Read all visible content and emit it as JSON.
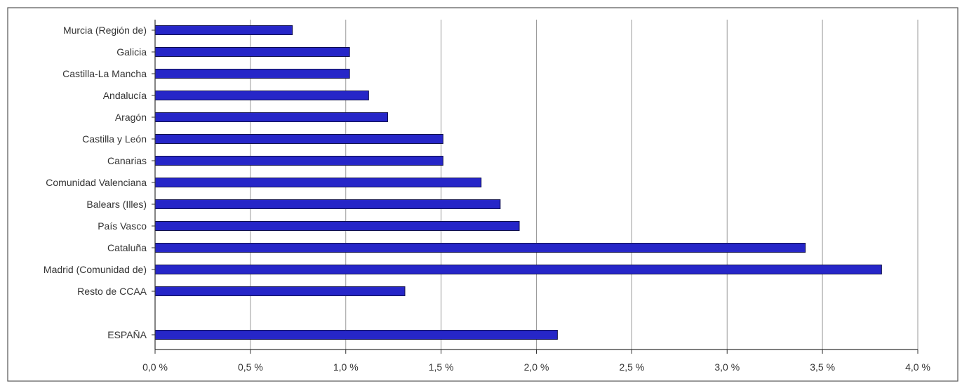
{
  "chart_data": {
    "type": "bar",
    "orientation": "horizontal",
    "categories": [
      "Murcia (Región de)",
      "Galicia",
      "Castilla-La Mancha",
      "Andalucía",
      "Aragón",
      "Castilla y León",
      "Canarias",
      "Comunidad Valenciana",
      "Balears (Illes)",
      "País Vasco",
      "Cataluña",
      "Madrid (Comunidad de)",
      "Resto de CCAA",
      "",
      "ESPAÑA"
    ],
    "values": [
      0.72,
      1.02,
      1.02,
      1.12,
      1.22,
      1.51,
      1.51,
      1.71,
      1.81,
      1.91,
      3.41,
      3.81,
      1.31,
      null,
      2.11
    ],
    "xlim": [
      0,
      4.0
    ],
    "xticks": [
      0.0,
      0.5,
      1.0,
      1.5,
      2.0,
      2.5,
      3.0,
      3.5,
      4.0
    ],
    "xtick_labels": [
      "0,0 %",
      "0,5 %",
      "1,0 %",
      "1,5 %",
      "2,0 %",
      "2,5 %",
      "3,0 %",
      "3,5 %",
      "4,0 %"
    ],
    "grid": "vertical",
    "bar_color": "#2626c8",
    "title": "",
    "xlabel": "",
    "ylabel": ""
  }
}
